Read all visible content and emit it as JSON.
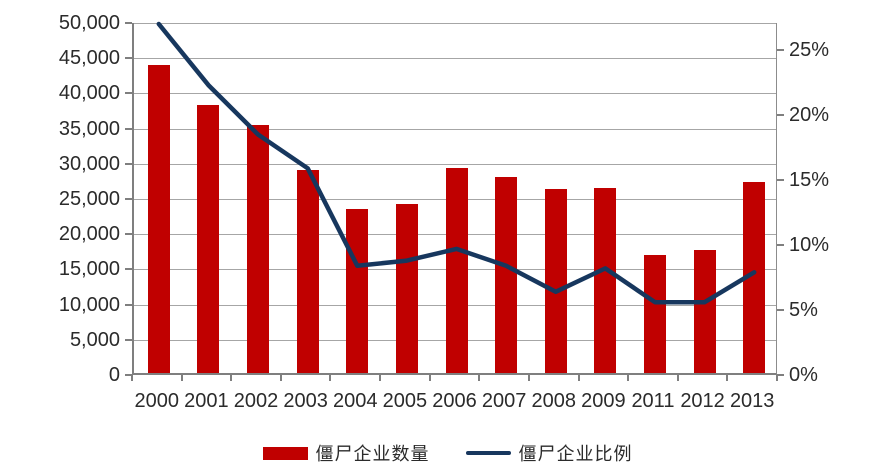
{
  "chart_data": {
    "type": "bar",
    "subtype": "combo-bar-line-dual-axis",
    "title": "",
    "categories": [
      "2000",
      "2001",
      "2002",
      "2003",
      "2004",
      "2005",
      "2006",
      "2007",
      "2008",
      "2009",
      "2011",
      "2012",
      "2013"
    ],
    "series": [
      {
        "name": "僵尸企业数量",
        "chart_type": "bar",
        "axis": "left",
        "color": "#c00000",
        "values": [
          43800,
          38000,
          35200,
          28900,
          23300,
          24000,
          29100,
          27800,
          26200,
          26300,
          16800,
          17500,
          27200
        ]
      },
      {
        "name": "僵尸企业比例",
        "chart_type": "line",
        "axis": "right",
        "color": "#17375e",
        "unit": "%",
        "values": [
          27.0,
          22.3,
          18.5,
          15.9,
          8.4,
          8.8,
          9.7,
          8.4,
          6.4,
          8.2,
          5.6,
          5.6,
          7.9
        ]
      }
    ],
    "left_axis": {
      "min": 0,
      "max": 50000,
      "step": 5000,
      "tick_labels": [
        "0",
        "5,000",
        "10,000",
        "15,000",
        "20,000",
        "25,000",
        "30,000",
        "35,000",
        "40,000",
        "45,000",
        "50,000"
      ]
    },
    "right_axis": {
      "min": 0,
      "tick_step": 5,
      "plot_max": 27.08,
      "tick_labels": [
        "0%",
        "5%",
        "10%",
        "15%",
        "20%",
        "25%"
      ]
    },
    "grid": {
      "horizontal": true,
      "vertical": false,
      "color": "#a6a6a6"
    },
    "legend_position": "bottom"
  },
  "legend": {
    "bar_label": "僵尸企业数量",
    "line_label": "僵尸企业比例"
  },
  "colors": {
    "bar": "#c00000",
    "line": "#17375e",
    "gridline": "#a6a6a6",
    "axis": "#7f7f7f",
    "text": "#2b2b2b"
  }
}
